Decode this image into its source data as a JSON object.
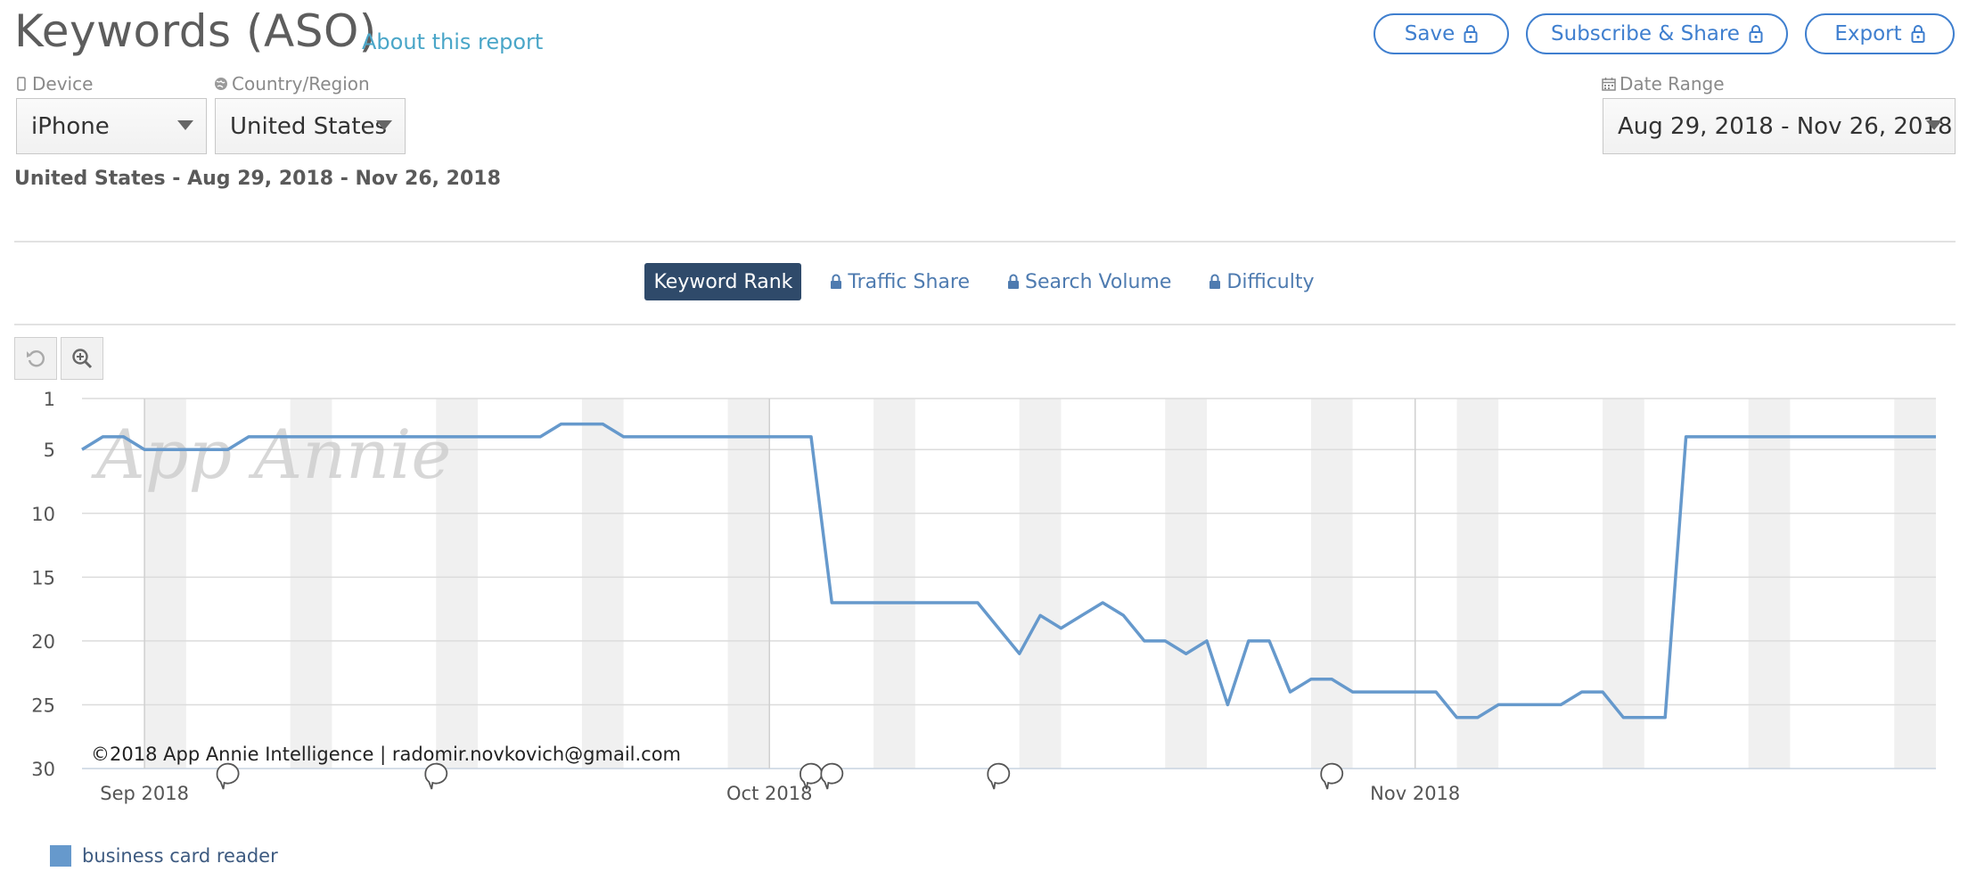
{
  "header": {
    "title": "Keywords (ASO)",
    "about_link": "About this report",
    "save_label": "Save",
    "subscribe_label": "Subscribe & Share",
    "export_label": "Export"
  },
  "filters": {
    "device_label": "Device",
    "device_value": "iPhone",
    "country_label": "Country/Region",
    "country_value": "United States",
    "date_label": "Date Range",
    "date_value": "Aug 29, 2018 - Nov 26, 2018"
  },
  "subtitle": "United States - Aug 29, 2018 - Nov 26, 2018",
  "tabs": [
    {
      "label": "Keyword Rank",
      "active": true,
      "locked": false
    },
    {
      "label": "Traffic Share",
      "active": false,
      "locked": true
    },
    {
      "label": "Search Volume",
      "active": false,
      "locked": true
    },
    {
      "label": "Difficulty",
      "active": false,
      "locked": true
    }
  ],
  "icons": {
    "reset": "reset-zoom-icon",
    "zoom": "zoom-in-icon",
    "lock": "lock-icon",
    "device": "phone-icon",
    "globe": "globe-icon",
    "calendar": "calendar-icon",
    "annotation": "speech-bubble-icon"
  },
  "colors": {
    "accent": "#3f7fcf",
    "series": "#6699cc",
    "active_tab": "#2f4a6a",
    "link": "#4aa6c8"
  },
  "chart_data": {
    "type": "line",
    "title": "",
    "xlabel": "",
    "ylabel": "",
    "y_inverted": true,
    "ylim": [
      30,
      1
    ],
    "yticks": [
      1,
      5,
      10,
      15,
      20,
      25,
      30
    ],
    "xlim": [
      "2018-08-29",
      "2018-11-26"
    ],
    "xticks": [
      {
        "date": "2018-09-01",
        "label": "Sep 2018"
      },
      {
        "date": "2018-10-01",
        "label": "Oct 2018"
      },
      {
        "date": "2018-11-01",
        "label": "Nov 2018"
      }
    ],
    "weekend_shading": true,
    "grid": true,
    "watermark": "App Annie",
    "copyright": "©2018 App Annie Intelligence | radomir.novkovich@gmail.com",
    "annotation_dates": [
      "2018-09-05",
      "2018-09-15",
      "2018-10-03",
      "2018-10-04",
      "2018-10-12",
      "2018-10-28"
    ],
    "legend_position": "bottom-left",
    "series": [
      {
        "name": "business card reader",
        "color": "#6699cc",
        "points": [
          [
            "2018-08-29",
            5
          ],
          [
            "2018-08-30",
            4
          ],
          [
            "2018-08-31",
            4
          ],
          [
            "2018-09-01",
            5
          ],
          [
            "2018-09-02",
            5
          ],
          [
            "2018-09-03",
            5
          ],
          [
            "2018-09-04",
            5
          ],
          [
            "2018-09-05",
            5
          ],
          [
            "2018-09-06",
            4
          ],
          [
            "2018-09-12",
            4
          ],
          [
            "2018-09-19",
            4
          ],
          [
            "2018-09-20",
            4
          ],
          [
            "2018-09-21",
            3
          ],
          [
            "2018-09-22",
            3
          ],
          [
            "2018-09-23",
            3
          ],
          [
            "2018-09-24",
            4
          ],
          [
            "2018-09-30",
            4
          ],
          [
            "2018-10-03",
            4
          ],
          [
            "2018-10-04",
            17
          ],
          [
            "2018-10-08",
            17
          ],
          [
            "2018-10-11",
            17
          ],
          [
            "2018-10-12",
            19
          ],
          [
            "2018-10-13",
            21
          ],
          [
            "2018-10-14",
            18
          ],
          [
            "2018-10-15",
            19
          ],
          [
            "2018-10-16",
            18
          ],
          [
            "2018-10-17",
            17
          ],
          [
            "2018-10-18",
            18
          ],
          [
            "2018-10-19",
            20
          ],
          [
            "2018-10-20",
            20
          ],
          [
            "2018-10-21",
            21
          ],
          [
            "2018-10-22",
            20
          ],
          [
            "2018-10-23",
            25
          ],
          [
            "2018-10-24",
            20
          ],
          [
            "2018-10-25",
            20
          ],
          [
            "2018-10-26",
            24
          ],
          [
            "2018-10-27",
            23
          ],
          [
            "2018-10-28",
            23
          ],
          [
            "2018-10-29",
            24
          ],
          [
            "2018-10-30",
            24
          ],
          [
            "2018-10-31",
            24
          ],
          [
            "2018-11-01",
            24
          ],
          [
            "2018-11-02",
            24
          ],
          [
            "2018-11-03",
            26
          ],
          [
            "2018-11-04",
            26
          ],
          [
            "2018-11-05",
            25
          ],
          [
            "2018-11-06",
            25
          ],
          [
            "2018-11-07",
            25
          ],
          [
            "2018-11-08",
            25
          ],
          [
            "2018-11-09",
            24
          ],
          [
            "2018-11-10",
            24
          ],
          [
            "2018-11-11",
            26
          ],
          [
            "2018-11-12",
            26
          ],
          [
            "2018-11-13",
            26
          ],
          [
            "2018-11-14",
            4
          ],
          [
            "2018-11-20",
            4
          ],
          [
            "2018-11-26",
            4
          ]
        ]
      }
    ]
  }
}
